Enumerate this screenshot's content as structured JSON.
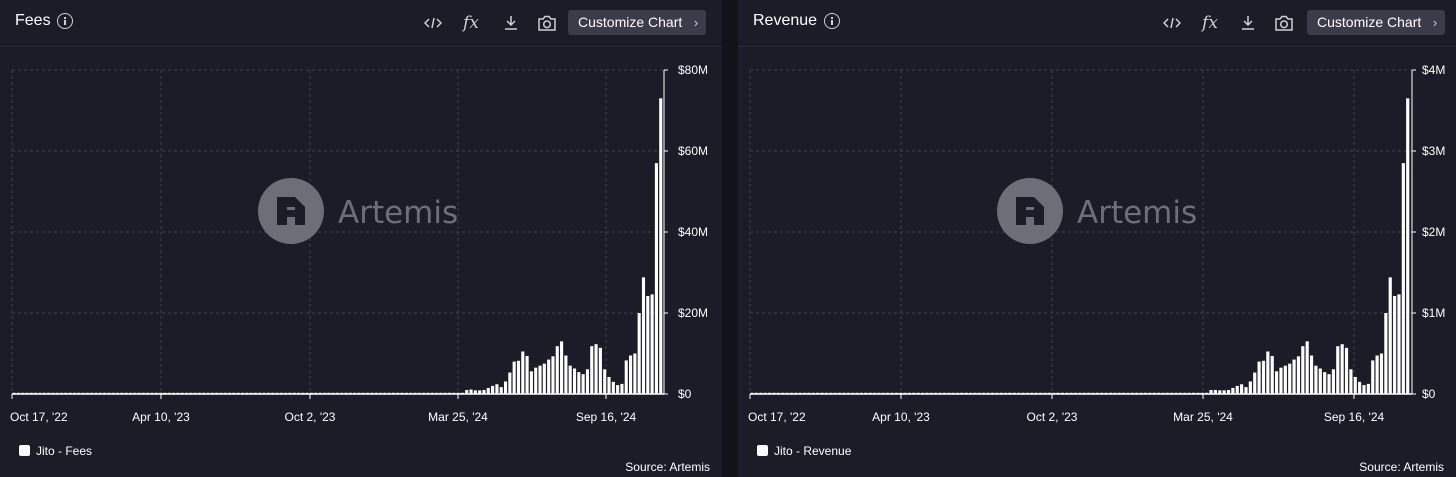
{
  "chart_data": [
    {
      "type": "bar",
      "title": "Fees",
      "y_tick_labels": [
        "$0",
        "$20M",
        "$40M",
        "$60M",
        "$80M"
      ],
      "ylim": [
        0,
        80
      ],
      "y_unit": "M USD",
      "x_tick_labels": [
        "Oct 17, '22",
        "Apr 10, '23",
        "Oct 2, '23",
        "Mar 25, '24",
        "Sep 16, '24"
      ],
      "legend": "Jito - Fees",
      "series": [
        {
          "name": "Jito - Fees",
          "values": [
            0.3,
            0.3,
            0.3,
            0.3,
            0.3,
            0.3,
            0.3,
            0.3,
            0.3,
            0.3,
            0.3,
            0.3,
            0.3,
            0.3,
            0.3,
            0.3,
            0.3,
            0.3,
            0.3,
            0.3,
            0.3,
            0.3,
            0.3,
            0.3,
            0.3,
            0.3,
            0.3,
            0.3,
            0.3,
            0.3,
            0.3,
            0.3,
            0.3,
            0.3,
            0.3,
            0.3,
            0.3,
            0.3,
            0.3,
            0.3,
            0.3,
            0.3,
            0.3,
            0.3,
            0.3,
            0.3,
            0.3,
            0.3,
            0.3,
            0.3,
            0.3,
            0.3,
            0.3,
            0.3,
            0.3,
            0.3,
            0.3,
            0.3,
            0.3,
            0.3,
            0.3,
            0.3,
            0.3,
            0.3,
            0.3,
            0.3,
            0.3,
            0.3,
            0.3,
            0.3,
            0.3,
            0.3,
            0.3,
            0.3,
            0.3,
            0.3,
            0.3,
            0.3,
            0.3,
            0.3,
            0.3,
            0.3,
            0.3,
            0.3,
            0.3,
            0.3,
            0.3,
            0.3,
            0.3,
            0.3,
            0.3,
            0.3,
            0.3,
            0.3,
            0.3,
            0.3,
            0.3,
            0.3,
            0.3,
            0.3,
            0.3,
            0.3,
            0.3,
            0.3,
            0.3,
            1.0,
            1.1,
            0.9,
            0.9,
            1.0,
            1.5,
            2.0,
            2.4,
            1.7,
            3.1,
            5.3,
            8.0,
            8.2,
            10.5,
            9.4,
            5.6,
            6.5,
            7.0,
            7.5,
            8.5,
            9.3,
            11.8,
            13.0,
            9.5,
            7.0,
            6.3,
            5.4,
            4.9,
            6.1,
            11.8,
            12.3,
            11.4,
            6.1,
            4.2,
            3.0,
            2.2,
            2.5,
            8.3,
            9.5,
            10.0,
            20.0,
            28.8,
            24.2,
            24.6,
            57.0,
            73.0
          ]
        }
      ]
    },
    {
      "type": "bar",
      "title": "Revenue",
      "y_tick_labels": [
        "$0",
        "$1M",
        "$2M",
        "$3M",
        "$4M"
      ],
      "ylim": [
        0,
        4
      ],
      "y_unit": "M USD",
      "x_tick_labels": [
        "Oct 17, '22",
        "Apr 10, '23",
        "Oct 2, '23",
        "Mar 25, '24",
        "Sep 16, '24"
      ],
      "legend": "Jito - Revenue",
      "series": [
        {
          "name": "Jito - Revenue",
          "values": [
            0.015,
            0.015,
            0.015,
            0.015,
            0.015,
            0.015,
            0.015,
            0.015,
            0.015,
            0.015,
            0.015,
            0.015,
            0.015,
            0.015,
            0.015,
            0.015,
            0.015,
            0.015,
            0.015,
            0.015,
            0.015,
            0.015,
            0.015,
            0.015,
            0.015,
            0.015,
            0.015,
            0.015,
            0.015,
            0.015,
            0.015,
            0.015,
            0.015,
            0.015,
            0.015,
            0.015,
            0.015,
            0.015,
            0.015,
            0.015,
            0.015,
            0.015,
            0.015,
            0.015,
            0.015,
            0.015,
            0.015,
            0.015,
            0.015,
            0.015,
            0.015,
            0.015,
            0.015,
            0.015,
            0.015,
            0.015,
            0.015,
            0.015,
            0.015,
            0.015,
            0.015,
            0.015,
            0.015,
            0.015,
            0.015,
            0.015,
            0.015,
            0.015,
            0.015,
            0.015,
            0.015,
            0.015,
            0.015,
            0.015,
            0.015,
            0.015,
            0.015,
            0.015,
            0.015,
            0.015,
            0.015,
            0.015,
            0.015,
            0.015,
            0.015,
            0.015,
            0.015,
            0.015,
            0.015,
            0.015,
            0.015,
            0.015,
            0.015,
            0.015,
            0.015,
            0.015,
            0.015,
            0.015,
            0.015,
            0.015,
            0.015,
            0.015,
            0.015,
            0.015,
            0.015,
            0.05,
            0.05,
            0.045,
            0.045,
            0.05,
            0.075,
            0.1,
            0.12,
            0.085,
            0.155,
            0.265,
            0.4,
            0.41,
            0.525,
            0.47,
            0.28,
            0.325,
            0.35,
            0.375,
            0.425,
            0.465,
            0.59,
            0.65,
            0.475,
            0.35,
            0.315,
            0.27,
            0.245,
            0.305,
            0.59,
            0.615,
            0.57,
            0.305,
            0.21,
            0.15,
            0.11,
            0.125,
            0.415,
            0.475,
            0.5,
            1.0,
            1.44,
            1.21,
            1.23,
            2.85,
            3.65
          ]
        }
      ]
    }
  ],
  "panels": [
    {
      "title": "Fees",
      "customize_label": "Customize Chart",
      "legend_label": "Jito - Fees",
      "source": "Source: Artemis",
      "watermark": "Artemis"
    },
    {
      "title": "Revenue",
      "customize_label": "Customize Chart",
      "legend_label": "Jito - Revenue",
      "source": "Source: Artemis",
      "watermark": "Artemis"
    }
  ],
  "toolbar": {
    "embed_icon": "code-icon",
    "formula_icon": "fx-icon",
    "download_icon": "download-icon",
    "screenshot_icon": "camera-icon",
    "formula_glyph": "fx"
  },
  "colors": {
    "bar": "#ffffff",
    "grid": "#3e4050",
    "background": "#1b1c27",
    "watermark": "#6c6e78"
  }
}
